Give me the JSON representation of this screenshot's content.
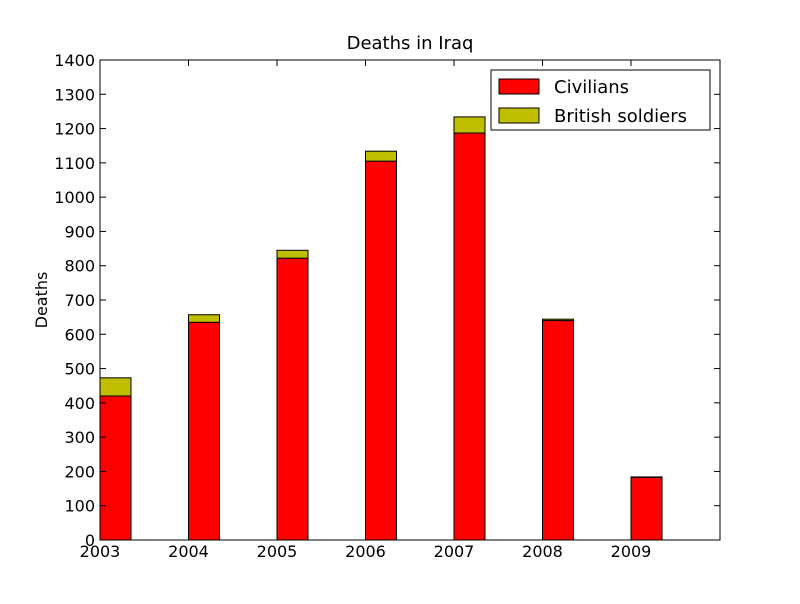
{
  "chart_data": {
    "type": "bar",
    "stacked": true,
    "title": "Deaths in Iraq",
    "xlabel": "",
    "ylabel": "Deaths",
    "categories": [
      "2003",
      "2004",
      "2005",
      "2006",
      "2007",
      "2008",
      "2009"
    ],
    "series": [
      {
        "name": "Civilians",
        "color": "#ff0000",
        "values": [
          420,
          635,
          822,
          1105,
          1187,
          640,
          183
        ]
      },
      {
        "name": "British soldiers",
        "color": "#bfbf00",
        "values": [
          53,
          22,
          23,
          29,
          47,
          4,
          1
        ]
      }
    ],
    "ylim": [
      0,
      1400
    ],
    "yticks": [
      0,
      100,
      200,
      300,
      400,
      500,
      600,
      700,
      800,
      900,
      1000,
      1100,
      1200,
      1300,
      1400
    ],
    "grid": false,
    "legend_position": "top-right"
  }
}
